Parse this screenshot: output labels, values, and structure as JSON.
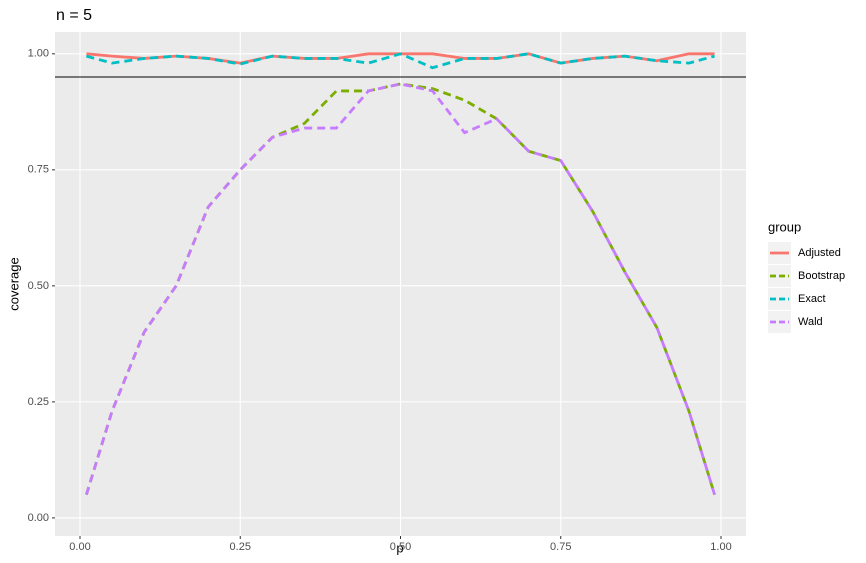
{
  "chart_data": {
    "type": "line",
    "title": "n = 5",
    "x_label": "p",
    "y_label": "coverage",
    "legend_title": "group",
    "x": [
      0.01,
      0.05,
      0.1,
      0.15,
      0.2,
      0.25,
      0.3,
      0.35,
      0.4,
      0.45,
      0.5,
      0.55,
      0.6,
      0.65,
      0.7,
      0.75,
      0.8,
      0.85,
      0.9,
      0.95,
      0.99
    ],
    "series": [
      {
        "name": "Adjusted",
        "color": "#F8766D",
        "dashed": false,
        "values": [
          1.0,
          0.995,
          0.99,
          0.995,
          0.99,
          0.98,
          0.995,
          0.99,
          0.99,
          1.0,
          1.0,
          1.0,
          0.99,
          0.99,
          1.0,
          0.98,
          0.99,
          0.995,
          0.985,
          1.0,
          1.0
        ]
      },
      {
        "name": "Bootstrap",
        "color": "#7CAE00",
        "dashed": true,
        "values": [
          0.05,
          0.23,
          0.4,
          0.5,
          0.67,
          0.75,
          0.82,
          0.85,
          0.92,
          0.92,
          0.935,
          0.925,
          0.9,
          0.86,
          0.79,
          0.77,
          0.66,
          0.53,
          0.41,
          0.23,
          0.05
        ]
      },
      {
        "name": "Exact",
        "color": "#00BFC4",
        "dashed": true,
        "values": [
          0.995,
          0.98,
          0.99,
          0.995,
          0.99,
          0.978,
          0.995,
          0.99,
          0.99,
          0.98,
          1.0,
          0.97,
          0.99,
          0.99,
          1.0,
          0.98,
          0.99,
          0.995,
          0.985,
          0.98,
          0.995
        ]
      },
      {
        "name": "Wald",
        "color": "#C77CFF",
        "dashed": true,
        "values": [
          0.05,
          0.23,
          0.4,
          0.5,
          0.67,
          0.75,
          0.82,
          0.84,
          0.84,
          0.92,
          0.935,
          0.92,
          0.83,
          0.86,
          0.79,
          0.77,
          0.66,
          0.53,
          0.41,
          0.23,
          0.05
        ]
      }
    ],
    "hline": 0.95,
    "xlim": [
      -0.039,
      1.039
    ],
    "ylim": [
      -0.039,
      1.047
    ],
    "xticks": [
      {
        "value": 0,
        "label": "0.00"
      },
      {
        "value": 0.25,
        "label": "0.25"
      },
      {
        "value": 0.5,
        "label": "0.50"
      },
      {
        "value": 0.75,
        "label": "0.75"
      },
      {
        "value": 1,
        "label": "1.00"
      }
    ],
    "yticks": [
      {
        "value": 0,
        "label": "0.00"
      },
      {
        "value": 0.25,
        "label": "0.25"
      },
      {
        "value": 0.5,
        "label": "0.50"
      },
      {
        "value": 0.75,
        "label": "0.75"
      },
      {
        "value": 1,
        "label": "1.00"
      }
    ],
    "grid": true
  }
}
